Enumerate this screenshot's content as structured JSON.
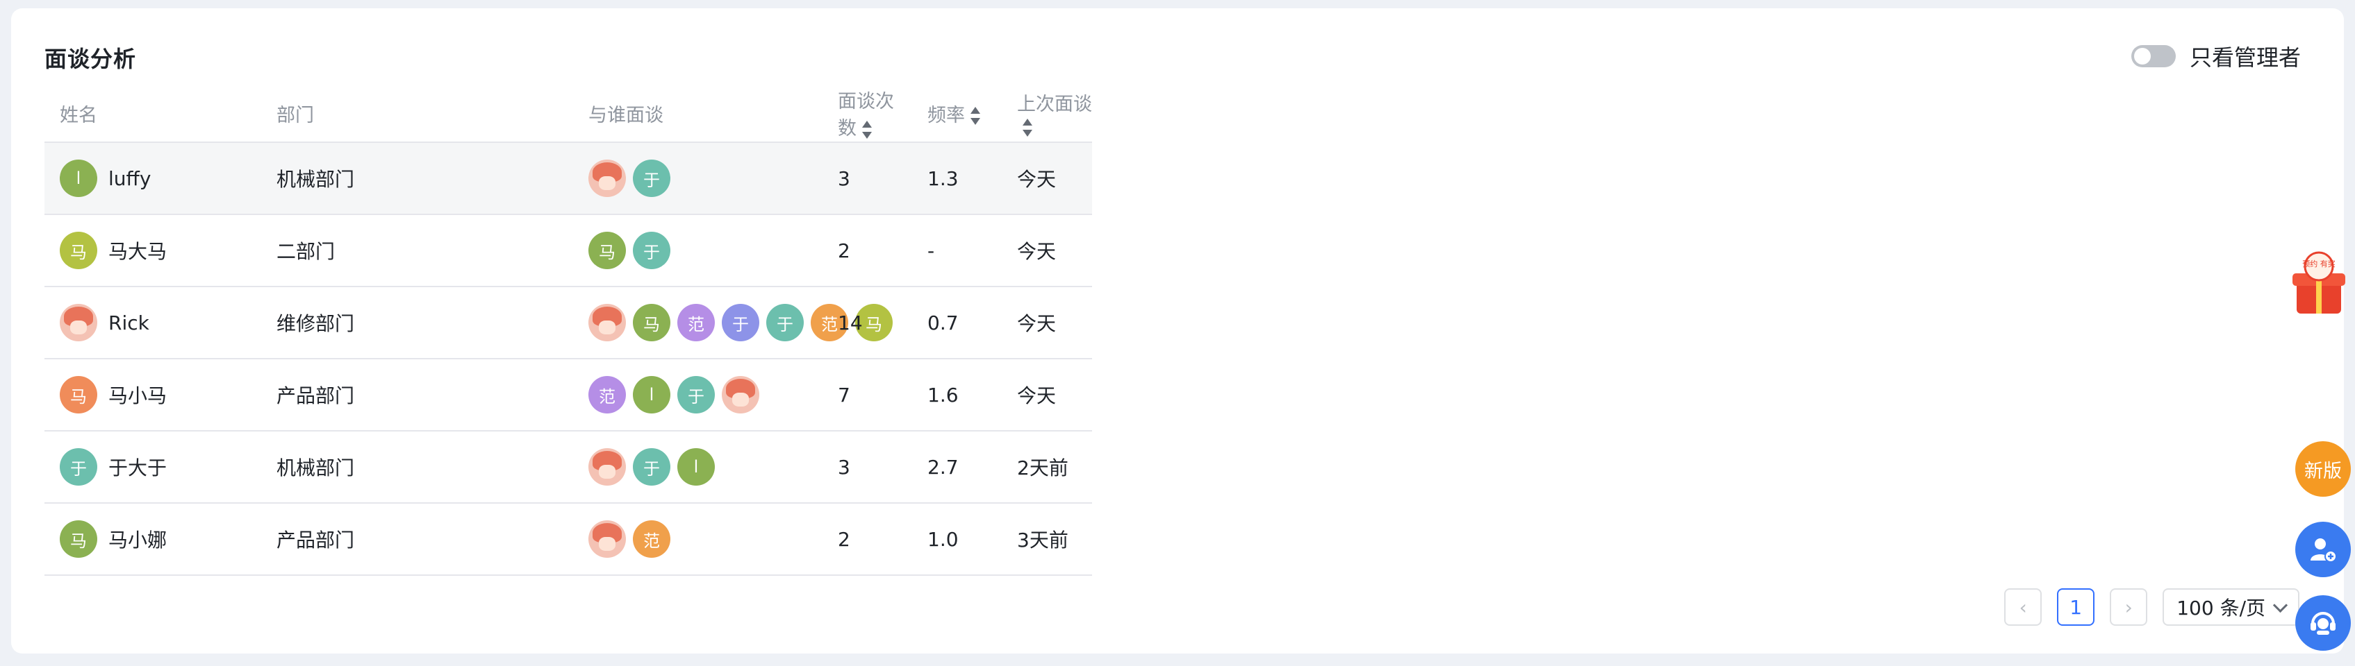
{
  "panel": {
    "title": "面谈分析",
    "toggle_label": "只看管理者"
  },
  "columns": {
    "name": "姓名",
    "dept": "部门",
    "with": "与谁面谈",
    "count": "面谈次数",
    "freq": "频率",
    "last": "上次面谈"
  },
  "rows": [
    {
      "avatar": "l",
      "avatar_color": "#8bb152",
      "name": "luffy",
      "dept": "机械部门",
      "interviewers": [
        {
          "t": "img"
        },
        {
          "t": "于",
          "c": "#6cbfad"
        }
      ],
      "count": "3",
      "freq": "1.3",
      "last": "今天"
    },
    {
      "avatar": "马",
      "avatar_color": "#b3c242",
      "name": "马大马",
      "dept": "二部门",
      "interviewers": [
        {
          "t": "马",
          "c": "#8bb152"
        },
        {
          "t": "于",
          "c": "#6cbfad"
        }
      ],
      "count": "2",
      "freq": "-",
      "last": "今天"
    },
    {
      "avatar": "img",
      "avatar_color": "",
      "name": "Rick",
      "dept": "维修部门",
      "interviewers": [
        {
          "t": "img"
        },
        {
          "t": "马",
          "c": "#8bb152"
        },
        {
          "t": "范",
          "c": "#b58ee6"
        },
        {
          "t": "于",
          "c": "#8d93e8"
        },
        {
          "t": "于",
          "c": "#6cbfad"
        },
        {
          "t": "范",
          "c": "#f0a04b"
        },
        {
          "t": "马",
          "c": "#b3c242"
        }
      ],
      "count": "14",
      "freq": "0.7",
      "last": "今天"
    },
    {
      "avatar": "马",
      "avatar_color": "#f08c5a",
      "name": "马小马",
      "dept": "产品部门",
      "interviewers": [
        {
          "t": "范",
          "c": "#b58ee6"
        },
        {
          "t": "l",
          "c": "#8bb152"
        },
        {
          "t": "于",
          "c": "#6cbfad"
        },
        {
          "t": "img"
        }
      ],
      "count": "7",
      "freq": "1.6",
      "last": "今天"
    },
    {
      "avatar": "于",
      "avatar_color": "#6cbfad",
      "name": "于大于",
      "dept": "机械部门",
      "interviewers": [
        {
          "t": "img"
        },
        {
          "t": "于",
          "c": "#6cbfad"
        },
        {
          "t": "l",
          "c": "#8bb152"
        }
      ],
      "count": "3",
      "freq": "2.7",
      "last": "2天前"
    },
    {
      "avatar": "马",
      "avatar_color": "#8bb152",
      "name": "马小娜",
      "dept": "产品部门",
      "interviewers": [
        {
          "t": "img"
        },
        {
          "t": "范",
          "c": "#f0a04b"
        }
      ],
      "count": "2",
      "freq": "1.0",
      "last": "3天前"
    }
  ],
  "pagination": {
    "current": "1",
    "page_size": "100 条/页"
  },
  "floating": {
    "new_label": "新版",
    "gift_text": "预约 有奖"
  }
}
